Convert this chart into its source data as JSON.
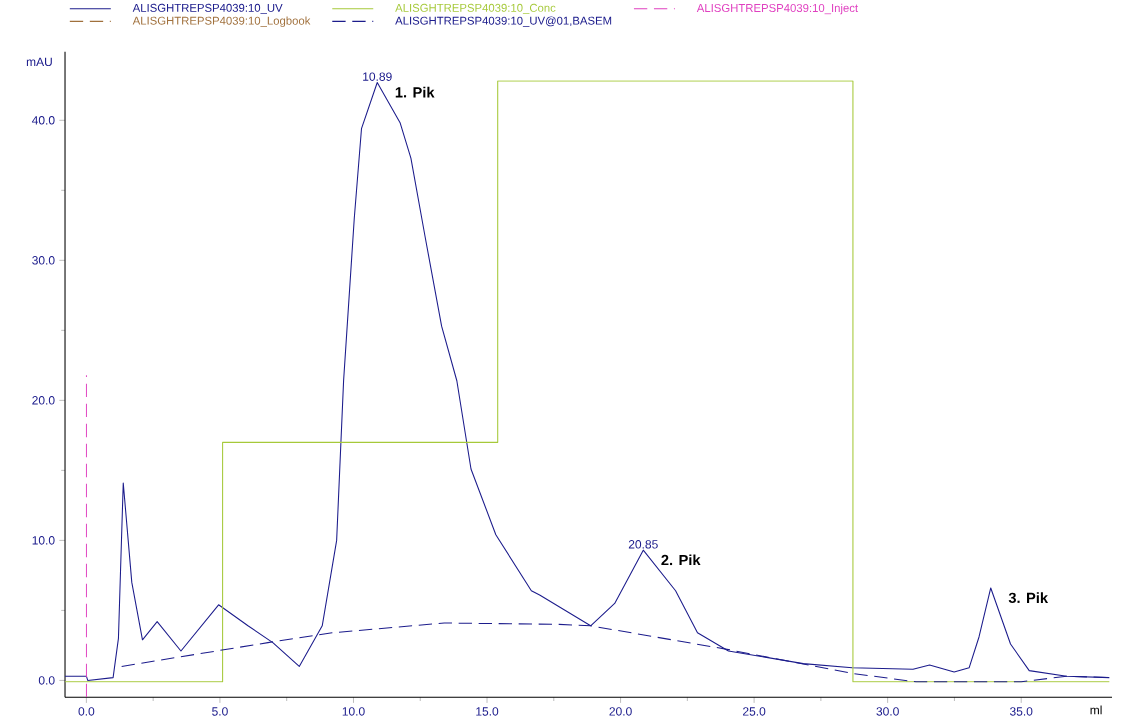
{
  "chart_data": {
    "type": "line",
    "xlabel": "ml",
    "ylabel": "mAU",
    "xlim": [
      -0.8,
      38.4
    ],
    "ylim": [
      -1.2,
      44.9
    ],
    "xticks": [
      {
        "value": 0,
        "label": "0.0"
      },
      {
        "value": 5,
        "label": "5.0"
      },
      {
        "value": 10,
        "label": "10.0"
      },
      {
        "value": 15,
        "label": "15.0"
      },
      {
        "value": 20,
        "label": "20.0"
      },
      {
        "value": 25,
        "label": "25.0"
      },
      {
        "value": 30,
        "label": "30.0"
      },
      {
        "value": 35,
        "label": "35.0"
      }
    ],
    "yticks": [
      {
        "value": 0,
        "label": "0.0"
      },
      {
        "value": 10,
        "label": "10.0"
      },
      {
        "value": 20,
        "label": "20.0"
      },
      {
        "value": 30,
        "label": "30.0"
      },
      {
        "value": 40,
        "label": "40.0"
      }
    ],
    "grid": false,
    "legend": "top left",
    "marker": "none",
    "series": [
      {
        "name": "ALISGHTREPSP4039:10_UV",
        "color": "#1c1c8c",
        "line_style": "solid",
        "x": [
          -0.8,
          0.0,
          0.05,
          1.0,
          1.2,
          1.38,
          1.7,
          2.1,
          2.65,
          3.54,
          4.95,
          6.05,
          6.98,
          7.97,
          8.83,
          9.37,
          9.63,
          10.03,
          10.3,
          10.89,
          11.75,
          12.15,
          12.68,
          13.3,
          13.87,
          14.4,
          15.33,
          16.66,
          16.97,
          18.88,
          19.78,
          20.85,
          22.06,
          22.88,
          24.04,
          26.84,
          28.67,
          30.95,
          31.57,
          32.49,
          33.05,
          33.42,
          33.86,
          34.6,
          35.3,
          36.7,
          38.3
        ],
        "values": [
          0.3,
          0.3,
          0.0,
          0.2,
          3.0,
          14.1,
          7.0,
          2.9,
          4.2,
          2.1,
          5.4,
          3.9,
          2.7,
          1.0,
          3.9,
          10.0,
          21.4,
          33.0,
          39.4,
          42.7,
          39.8,
          37.3,
          31.7,
          25.3,
          21.4,
          15.1,
          10.4,
          6.4,
          6.1,
          3.9,
          5.5,
          9.3,
          6.4,
          3.4,
          2.1,
          1.2,
          0.9,
          0.8,
          1.1,
          0.6,
          0.9,
          3.1,
          6.6,
          2.6,
          0.7,
          0.3,
          0.2
        ]
      },
      {
        "name": "ALISGHTREPSP4039:10_Conc",
        "color": "#a6c93a",
        "type": "step",
        "line_style": "solid",
        "x": [
          -0.8,
          5.1,
          15.4,
          28.7,
          38.3
        ],
        "values": [
          -0.1,
          17.0,
          42.8,
          -0.1,
          -0.1
        ]
      },
      {
        "name": "ALISGHTREPSP4039:10_Inject",
        "color": "#e040c0",
        "line_style": "dashed",
        "x": [
          0.0,
          0.0
        ],
        "values": [
          -1.2,
          21.8
        ]
      },
      {
        "name": "ALISGHTREPSP4039:10_Logbook",
        "color": "#a0703c",
        "line_style": "dashed"
      },
      {
        "name": "ALISGHTREPSP4039:10_UV@01,BASEM",
        "color": "#1c1c8c",
        "line_style": "dashed",
        "x": [
          1.32,
          6.8,
          9.2,
          13.4,
          17.7,
          18.88,
          24.04,
          28.67,
          31.06,
          35.0,
          36.7,
          38.3
        ],
        "values": [
          1.0,
          2.7,
          3.4,
          4.1,
          4.0,
          3.9,
          2.2,
          0.5,
          -0.1,
          -0.1,
          0.3,
          0.2
        ]
      }
    ],
    "annotations": [
      {
        "text": "10.89",
        "x": 10.89,
        "y": 42.7
      },
      {
        "text": "20.85",
        "x": 20.85,
        "y": 9.3
      },
      {
        "text": "1. Pik",
        "x": 10.89,
        "y": 42.7
      },
      {
        "text": "2. Pik",
        "x": 20.85,
        "y": 9.3
      },
      {
        "text": "3. Pik",
        "x": 33.86,
        "y": 6.6
      }
    ]
  }
}
